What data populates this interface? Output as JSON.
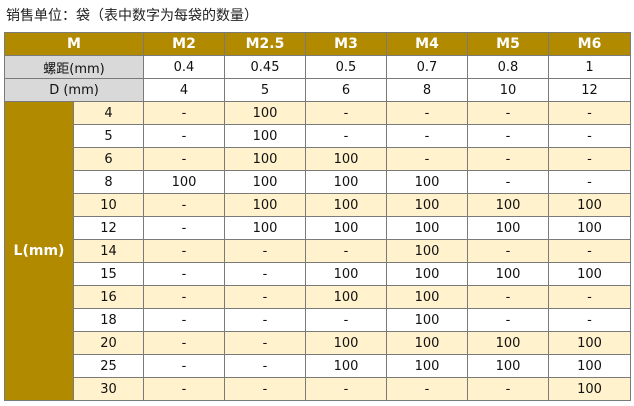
{
  "caption": "销售单位：袋（表中数字为每袋的数量）",
  "header": {
    "corner": "M",
    "sizes": [
      "M2",
      "M2.5",
      "M3",
      "M4",
      "M5",
      "M6"
    ]
  },
  "pitch_row": {
    "label": "螺距(mm)",
    "values": [
      "0.4",
      "0.45",
      "0.5",
      "0.7",
      "0.8",
      "1"
    ]
  },
  "diameter_row": {
    "label": "D (mm)",
    "values": [
      "4",
      "5",
      "6",
      "8",
      "10",
      "12"
    ]
  },
  "length_header": "L(mm)",
  "rows": [
    {
      "length": "4",
      "cells": [
        "-",
        "100",
        "-",
        "-",
        "-",
        "-"
      ]
    },
    {
      "length": "5",
      "cells": [
        "-",
        "100",
        "-",
        "-",
        "-",
        "-"
      ]
    },
    {
      "length": "6",
      "cells": [
        "-",
        "100",
        "100",
        "-",
        "-",
        "-"
      ]
    },
    {
      "length": "8",
      "cells": [
        "100",
        "100",
        "100",
        "100",
        "-",
        "-"
      ]
    },
    {
      "length": "10",
      "cells": [
        "-",
        "100",
        "100",
        "100",
        "100",
        "100"
      ]
    },
    {
      "length": "12",
      "cells": [
        "-",
        "100",
        "100",
        "100",
        "100",
        "100"
      ]
    },
    {
      "length": "14",
      "cells": [
        "-",
        "-",
        "-",
        "100",
        "-",
        "-"
      ]
    },
    {
      "length": "15",
      "cells": [
        "-",
        "-",
        "100",
        "100",
        "100",
        "100"
      ]
    },
    {
      "length": "16",
      "cells": [
        "-",
        "-",
        "100",
        "100",
        "-",
        "-"
      ]
    },
    {
      "length": "18",
      "cells": [
        "-",
        "-",
        "-",
        "100",
        "-",
        "-"
      ]
    },
    {
      "length": "20",
      "cells": [
        "-",
        "-",
        "100",
        "100",
        "100",
        "100"
      ]
    },
    {
      "length": "25",
      "cells": [
        "-",
        "-",
        "100",
        "100",
        "100",
        "100"
      ]
    },
    {
      "length": "30",
      "cells": [
        "-",
        "-",
        "-",
        "-",
        "-",
        "100"
      ]
    }
  ],
  "colors": {
    "header_gold": "#b18a00",
    "row_cream": "#fff2cc",
    "info_gray": "#d9d9d9"
  }
}
